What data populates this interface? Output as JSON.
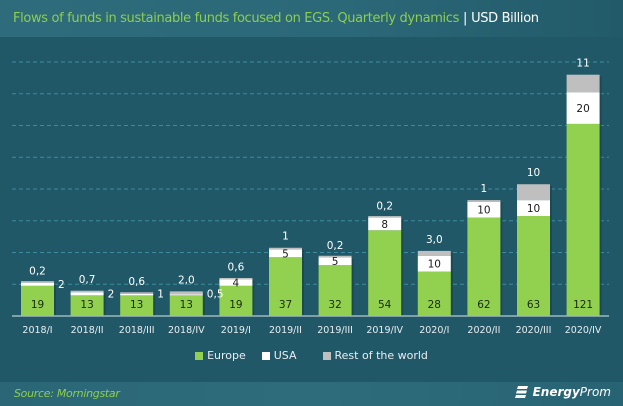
{
  "header": {
    "title": "Flows of funds in sustainable funds focused on EGS. Quarterly dynamics",
    "separator": "|",
    "unit": "USD Billion"
  },
  "footer": {
    "source": "Source: Morningstar",
    "brand_bold": "Energy",
    "brand_light": "Prom",
    "brand_icon": "energyprom-logo-icon"
  },
  "colors": {
    "europe": "#92d050",
    "usa": "#ffffff",
    "rest": "#bfbfbf",
    "title": "#8dcf4e",
    "background": "#215868"
  },
  "chart_data": {
    "type": "bar",
    "stacked": true,
    "title": "Flows of funds in sustainable funds focused on EGS. Quarterly dynamics | USD Billion",
    "xlabel": "",
    "ylabel": "USD Billion",
    "ylim": [
      0,
      160
    ],
    "grid": true,
    "gridlines": [
      20,
      40,
      60,
      80,
      100,
      120,
      140,
      160
    ],
    "legend_position": "bottom",
    "categories": [
      "2018/I",
      "2018/II",
      "2018/III",
      "2018/IV",
      "2019/I",
      "2019/II",
      "2019/III",
      "2019/IV",
      "2020/I",
      "2020/II",
      "2020/III",
      "2020/IV"
    ],
    "series": [
      {
        "name": "Europe",
        "color": "#92d050",
        "values": [
          19,
          13,
          13,
          13,
          19,
          37,
          32,
          54,
          28,
          62,
          63,
          121
        ],
        "labels": [
          "19",
          "13",
          "13",
          "13",
          "19",
          "37",
          "32",
          "54",
          "28",
          "62",
          "63",
          "121"
        ]
      },
      {
        "name": "USA",
        "color": "#ffffff",
        "values": [
          2,
          2,
          1,
          0.5,
          4,
          5,
          5,
          8,
          10,
          10,
          10,
          20
        ],
        "labels": [
          "2",
          "2",
          "1",
          "0,5",
          "4",
          "5",
          "5",
          "8",
          "10",
          "10",
          "10",
          "20"
        ]
      },
      {
        "name": "Rest of the world",
        "color": "#bfbfbf",
        "values": [
          0.2,
          0.7,
          0.6,
          2.0,
          0.6,
          1,
          0.2,
          0.2,
          3.0,
          1,
          10,
          11
        ],
        "labels": [
          "0,2",
          "0,7",
          "0,6",
          "2,0",
          "0,6",
          "1",
          "0,2",
          "0,2",
          "3,0",
          "1",
          "10",
          "11"
        ]
      }
    ]
  }
}
